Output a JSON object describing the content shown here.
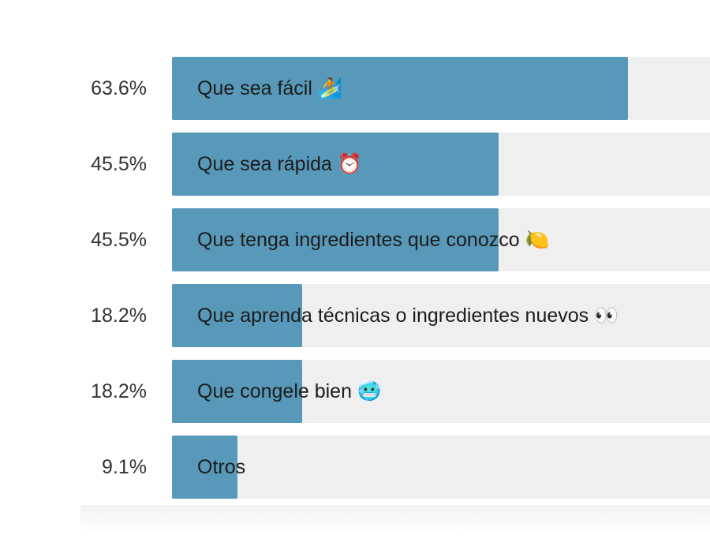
{
  "chart_data": {
    "type": "bar",
    "orientation": "horizontal",
    "categories": [
      "Que sea fácil 🏄",
      "Que sea rápida ⏰",
      "Que tenga ingredientes que conozco 🍋",
      "Que aprenda técnicas o ingredientes nuevos 👀",
      "Que congele bien 🥶",
      "Otros"
    ],
    "values": [
      63.6,
      45.5,
      45.5,
      18.2,
      18.2,
      9.1
    ],
    "value_labels": [
      "63.6%",
      "45.5%",
      "45.5%",
      "18.2%",
      "18.2%",
      "9.1%"
    ],
    "unit": "%",
    "xlim": [
      0,
      75
    ],
    "grid": false,
    "legend": "none",
    "bar_color": "#5898b9",
    "track_color": "#efefef"
  }
}
